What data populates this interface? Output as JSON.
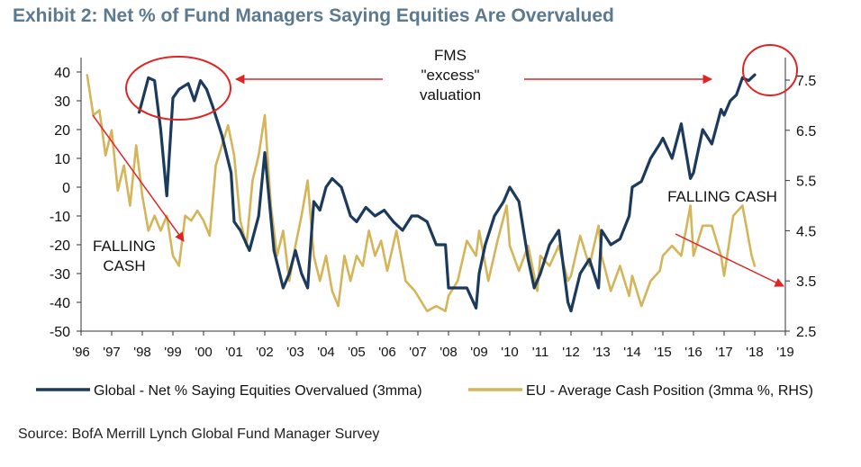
{
  "title": "Exhibit 2: Net % of Fund Managers Saying Equities Are Overvalued",
  "source": "Source: BofA Merrill Lynch Global Fund Manager Survey",
  "colors": {
    "global": "#1b3a5c",
    "eu": "#d4b55a",
    "annotation": "#e02424"
  },
  "chart_data": {
    "type": "line",
    "xlim": [
      1996,
      2019
    ],
    "x_ticks": [
      "'96",
      "'97",
      "'98",
      "'99",
      "'00",
      "'01",
      "'02",
      "'03",
      "'04",
      "'05",
      "'06",
      "'07",
      "'08",
      "'09",
      "'10",
      "'11",
      "'12",
      "'13",
      "'14",
      "'15",
      "'16",
      "'17",
      "'18",
      "'19"
    ],
    "y_left": {
      "min": -50,
      "max": 40,
      "ticks": [
        "40",
        "30",
        "20",
        "10",
        "0",
        "-10",
        "-20",
        "-30",
        "-40",
        "-50"
      ]
    },
    "y_right": {
      "min": 2.5,
      "max": 7.5,
      "ticks": [
        "7.5",
        "6.5",
        "5.5",
        "4.5",
        "3.5",
        "2.5"
      ]
    },
    "legend_position": "bottom",
    "series": [
      {
        "name": "Global - Net % Saying Equities Overvalued (3mma)",
        "axis": "left",
        "x": [
          1997.9,
          1998.2,
          1998.4,
          1998.6,
          1998.8,
          1999.0,
          1999.2,
          1999.5,
          1999.7,
          1999.9,
          2000.1,
          2000.3,
          2000.6,
          2000.9,
          2001.0,
          2001.2,
          2001.5,
          2001.8,
          2002.0,
          2002.3,
          2002.6,
          2002.8,
          2003.0,
          2003.2,
          2003.4,
          2003.6,
          2003.8,
          2004.0,
          2004.2,
          2004.5,
          2004.8,
          2005.0,
          2005.3,
          2005.6,
          2005.9,
          2006.2,
          2006.5,
          2006.8,
          2007.0,
          2007.3,
          2007.6,
          2007.9,
          2008.0,
          2008.3,
          2008.6,
          2008.9,
          2009.0,
          2009.2,
          2009.5,
          2009.8,
          2010.0,
          2010.3,
          2010.6,
          2010.8,
          2011.0,
          2011.3,
          2011.6,
          2011.9,
          2012.0,
          2012.3,
          2012.6,
          2012.9,
          2013.0,
          2013.3,
          2013.6,
          2013.9,
          2014.0,
          2014.3,
          2014.6,
          2014.9,
          2015.0,
          2015.3,
          2015.6,
          2015.9,
          2016.0,
          2016.3,
          2016.6,
          2016.9,
          2017.0,
          2017.2,
          2017.4,
          2017.6,
          2017.8,
          2018.0
        ],
        "values": [
          26,
          38,
          37,
          20,
          -3,
          31,
          34,
          36,
          30,
          37,
          34,
          28,
          18,
          5,
          -12,
          -15,
          -22,
          -10,
          12,
          -22,
          -35,
          -30,
          -22,
          -30,
          -35,
          -5,
          -8,
          0,
          3,
          0,
          -10,
          -12,
          -7,
          -10,
          -8,
          -12,
          -15,
          -10,
          -10,
          -12,
          -20,
          -20,
          -35,
          -35,
          -35,
          -42,
          -30,
          -20,
          -10,
          -5,
          0,
          -5,
          -25,
          -35,
          -30,
          -20,
          -15,
          -40,
          -43,
          -30,
          -25,
          -35,
          -15,
          -20,
          -18,
          -10,
          0,
          2,
          10,
          15,
          17,
          10,
          22,
          3,
          5,
          20,
          15,
          27,
          25,
          30,
          32,
          38,
          37,
          39
        ]
      },
      {
        "name": "EU - Average Cash Position (3mma %, RHS)",
        "axis": "right",
        "x": [
          1996.2,
          1996.4,
          1996.6,
          1996.8,
          1997.0,
          1997.2,
          1997.4,
          1997.6,
          1997.8,
          1998.0,
          1998.2,
          1998.4,
          1998.6,
          1998.8,
          1999.0,
          1999.2,
          1999.4,
          1999.6,
          1999.8,
          2000.0,
          2000.2,
          2000.4,
          2000.6,
          2000.8,
          2001.0,
          2001.2,
          2001.4,
          2001.6,
          2001.8,
          2002.0,
          2002.2,
          2002.4,
          2002.6,
          2002.8,
          2003.0,
          2003.2,
          2003.4,
          2003.6,
          2003.8,
          2004.0,
          2004.2,
          2004.4,
          2004.6,
          2004.8,
          2005.0,
          2005.2,
          2005.4,
          2005.6,
          2005.8,
          2006.0,
          2006.3,
          2006.6,
          2006.9,
          2007.0,
          2007.3,
          2007.6,
          2007.9,
          2008.0,
          2008.3,
          2008.6,
          2008.9,
          2009.0,
          2009.3,
          2009.6,
          2009.9,
          2010.0,
          2010.3,
          2010.6,
          2010.9,
          2011.0,
          2011.3,
          2011.6,
          2011.9,
          2012.0,
          2012.3,
          2012.6,
          2012.9,
          2013.0,
          2013.3,
          2013.6,
          2013.9,
          2014.0,
          2014.3,
          2014.6,
          2014.9,
          2015.0,
          2015.3,
          2015.6,
          2015.9,
          2016.0,
          2016.3,
          2016.6,
          2016.9,
          2017.0,
          2017.3,
          2017.6,
          2017.9,
          2018.0
        ],
        "values": [
          7.6,
          6.8,
          6.9,
          6.0,
          6.5,
          5.3,
          5.8,
          5.0,
          6.2,
          5.2,
          4.5,
          4.8,
          4.5,
          4.8,
          4.0,
          3.8,
          4.8,
          4.7,
          4.9,
          4.7,
          4.4,
          5.8,
          6.2,
          6.6,
          6.0,
          4.7,
          4.2,
          5.5,
          6.0,
          6.8,
          5.0,
          4.0,
          4.5,
          3.5,
          4.2,
          4.8,
          5.5,
          4.0,
          3.5,
          4.0,
          3.3,
          3.0,
          4.0,
          3.5,
          4.0,
          3.8,
          4.5,
          4.0,
          4.3,
          3.7,
          4.5,
          3.5,
          3.3,
          3.2,
          2.9,
          3.0,
          2.9,
          3.2,
          3.5,
          4.3,
          4.0,
          4.5,
          3.5,
          4.3,
          5.0,
          4.2,
          3.7,
          4.2,
          3.3,
          4.0,
          3.8,
          4.2,
          3.5,
          3.6,
          4.4,
          3.8,
          4.6,
          4.0,
          3.3,
          3.8,
          3.2,
          3.6,
          3.0,
          3.5,
          3.7,
          4.0,
          4.2,
          4.0,
          5.0,
          4.0,
          4.6,
          4.6,
          4.0,
          3.6,
          4.8,
          5.0,
          4.0,
          3.8
        ]
      }
    ],
    "annotations": [
      {
        "text_lines": [
          "FMS",
          "\"excess\"",
          "valuation"
        ],
        "at": [
          2008.9,
          37
        ]
      },
      {
        "text_lines": [
          "FALLING",
          "CASH"
        ],
        "at": [
          1997.8,
          -25
        ]
      },
      {
        "text_lines": [
          "FALLING  CASH"
        ],
        "at": [
          2016.5,
          -5
        ]
      }
    ]
  }
}
